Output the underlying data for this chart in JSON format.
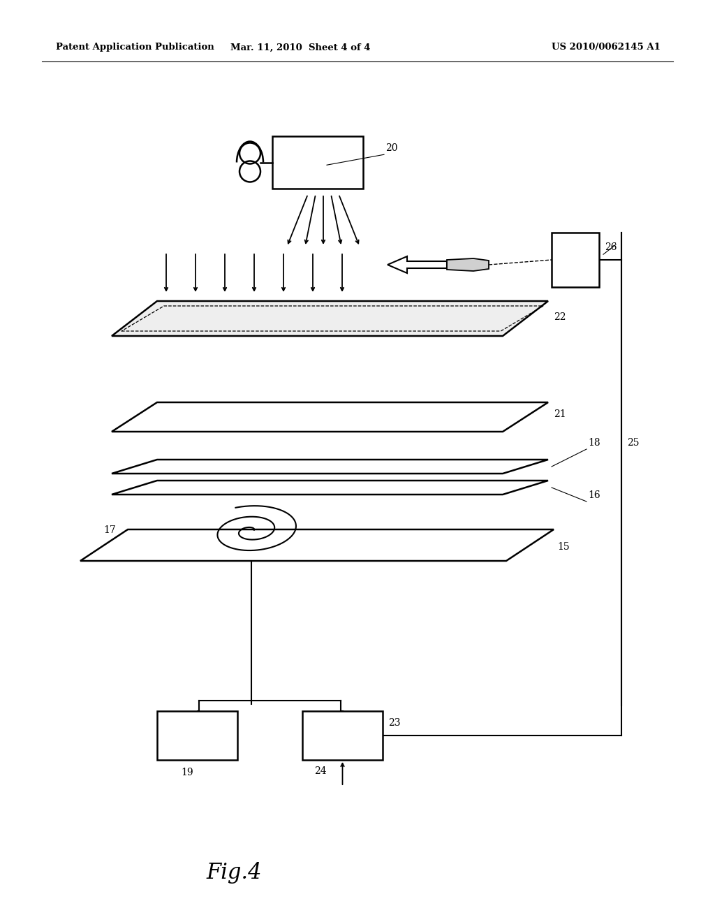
{
  "bg_color": "#ffffff",
  "header_left": "Patent Application Publication",
  "header_mid": "Mar. 11, 2010  Sheet 4 of 4",
  "header_right": "US 2010/0062145 A1",
  "fig_label": "Fig.4"
}
